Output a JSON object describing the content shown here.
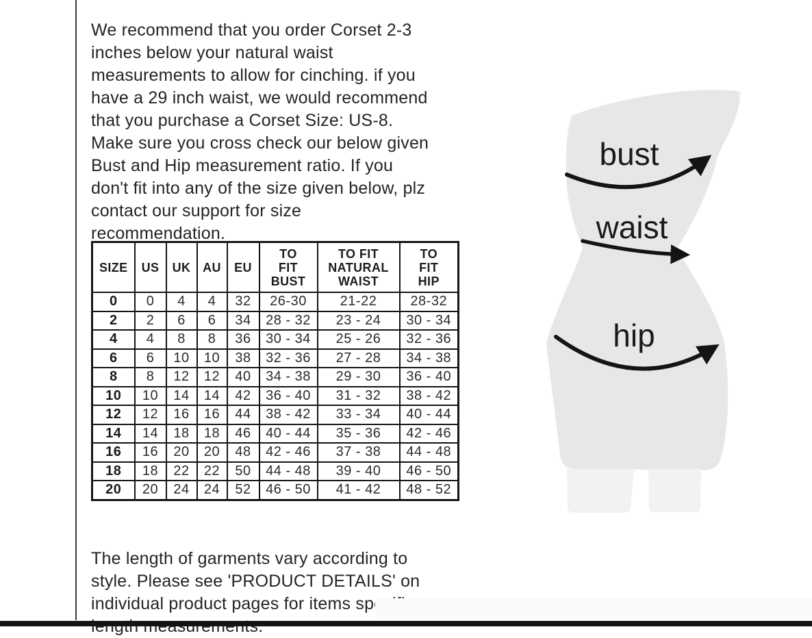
{
  "intro_paragraph": {
    "text": "We recommend that you order Corset 2-3\ninches below your natural waist\nmeasurements to allow for cinching. if you\nhave a 29 inch waist, we would recommend\nthat you purchase a Corset Size: US-8.\nMake sure you cross check our below given\nBust and Hip measurement ratio. If you\ndon't fit into any of the size given below, plz\ncontact our support for size\nrecommendation."
  },
  "size_table": {
    "headers": [
      "SIZE",
      "US",
      "UK",
      "AU",
      "EU",
      "TO\nFIT\nBUST",
      "TO FIT\nNATURAL\nWAIST",
      "TO\nFIT\nHIP"
    ],
    "rows": [
      [
        "0",
        "0",
        "4",
        "4",
        "32",
        "26-30",
        "21-22",
        "28-32"
      ],
      [
        "2",
        "2",
        "6",
        "6",
        "34",
        "28 - 32",
        "23 - 24",
        "30 - 34"
      ],
      [
        "4",
        "4",
        "8",
        "8",
        "36",
        "30 - 34",
        "25 - 26",
        "32 - 36"
      ],
      [
        "6",
        "6",
        "10",
        "10",
        "38",
        "32 - 36",
        "27 - 28",
        "34 - 38"
      ],
      [
        "8",
        "8",
        "12",
        "12",
        "40",
        "34 - 38",
        "29 - 30",
        "36 - 40"
      ],
      [
        "10",
        "10",
        "14",
        "14",
        "42",
        "36 - 40",
        "31 - 32",
        "38 - 42"
      ],
      [
        "12",
        "12",
        "16",
        "16",
        "44",
        "38 - 42",
        "33 - 34",
        "40 - 44"
      ],
      [
        "14",
        "14",
        "18",
        "18",
        "46",
        "40 - 44",
        "35 - 36",
        "42 - 46"
      ],
      [
        "16",
        "16",
        "20",
        "20",
        "48",
        "42 - 46",
        "37 - 38",
        "44 - 48"
      ],
      [
        "18",
        "18",
        "22",
        "22",
        "50",
        "44 - 48",
        "39 - 40",
        "46 - 50"
      ],
      [
        "20",
        "20",
        "24",
        "24",
        "52",
        "46 - 50",
        "41 - 42",
        "48 - 52"
      ]
    ]
  },
  "footer_paragraph": {
    "text": "The length of garments vary according to\nstyle. Please see 'PRODUCT DETAILS'  on\nindividual product pages for items specific\nlength measurements."
  },
  "figure": {
    "labels": {
      "bust": "bust",
      "waist": "waist",
      "hip": "hip"
    },
    "silhouette_color": "#e7e7e7",
    "flap_color": "#f0f0f0",
    "legs_color": "#f2f2f2",
    "arrow_color": "#141414",
    "label_color": "#1a1a1a"
  }
}
